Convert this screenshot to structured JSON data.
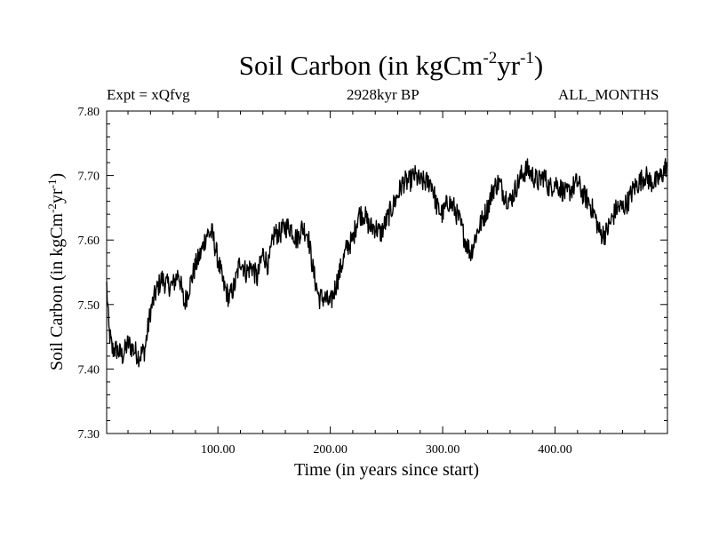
{
  "chart_data": {
    "type": "line",
    "title_main": "Soil Carbon (in kgCm",
    "title_exp1": "-2",
    "title_mid": "yr",
    "title_exp2": "-1",
    "title_end": ")",
    "expt_label": "Expt = xQfvg",
    "period_label": "2928kyr BP",
    "months_label": "ALL_MONTHS",
    "xlabel": "Time (in years since start)",
    "ylabel_main": "Soil Carbon (in kgCm",
    "ylabel_exp1": "-2",
    "ylabel_mid": "yr",
    "ylabel_exp2": "-1",
    "ylabel_end": ")",
    "xlim": [
      1,
      500
    ],
    "ylim": [
      7.3,
      7.8
    ],
    "x_ticks": [
      100,
      200,
      300,
      400
    ],
    "x_tick_labels": [
      "100.00",
      "200.00",
      "300.00",
      "400.00"
    ],
    "y_ticks": [
      7.3,
      7.4,
      7.5,
      7.6,
      7.7,
      7.8
    ],
    "y_tick_labels": [
      "7.30",
      "7.40",
      "7.50",
      "7.60",
      "7.70",
      "7.80"
    ],
    "series": [
      {
        "name": "Soil Carbon",
        "color": "#000000",
        "x": [
          1,
          3,
          6,
          10,
          15,
          20,
          25,
          30,
          35,
          40,
          45,
          50,
          55,
          60,
          65,
          70,
          75,
          80,
          85,
          90,
          95,
          100,
          105,
          110,
          115,
          120,
          125,
          130,
          135,
          140,
          145,
          150,
          155,
          160,
          165,
          170,
          175,
          180,
          185,
          190,
          195,
          200,
          205,
          210,
          215,
          220,
          225,
          230,
          235,
          240,
          245,
          250,
          255,
          260,
          265,
          270,
          275,
          280,
          285,
          290,
          295,
          300,
          305,
          310,
          315,
          320,
          325,
          330,
          335,
          340,
          345,
          350,
          355,
          360,
          365,
          370,
          375,
          380,
          385,
          390,
          395,
          400,
          405,
          410,
          415,
          420,
          425,
          430,
          435,
          440,
          445,
          450,
          455,
          460,
          465,
          470,
          475,
          480,
          485,
          490,
          495,
          500
        ],
        "values": [
          7.53,
          7.46,
          7.43,
          7.43,
          7.42,
          7.44,
          7.43,
          7.42,
          7.43,
          7.49,
          7.52,
          7.54,
          7.53,
          7.53,
          7.55,
          7.5,
          7.53,
          7.56,
          7.58,
          7.61,
          7.61,
          7.57,
          7.53,
          7.51,
          7.53,
          7.57,
          7.55,
          7.56,
          7.54,
          7.58,
          7.56,
          7.61,
          7.61,
          7.62,
          7.62,
          7.6,
          7.62,
          7.61,
          7.55,
          7.51,
          7.51,
          7.5,
          7.53,
          7.56,
          7.59,
          7.6,
          7.64,
          7.64,
          7.62,
          7.62,
          7.61,
          7.63,
          7.65,
          7.67,
          7.69,
          7.69,
          7.7,
          7.69,
          7.69,
          7.69,
          7.65,
          7.64,
          7.66,
          7.65,
          7.63,
          7.6,
          7.58,
          7.61,
          7.63,
          7.65,
          7.68,
          7.69,
          7.67,
          7.66,
          7.68,
          7.7,
          7.71,
          7.7,
          7.69,
          7.7,
          7.68,
          7.69,
          7.68,
          7.67,
          7.68,
          7.69,
          7.67,
          7.66,
          7.64,
          7.61,
          7.61,
          7.63,
          7.65,
          7.65,
          7.66,
          7.68,
          7.69,
          7.7,
          7.69,
          7.69,
          7.7,
          7.72
        ]
      }
    ]
  }
}
